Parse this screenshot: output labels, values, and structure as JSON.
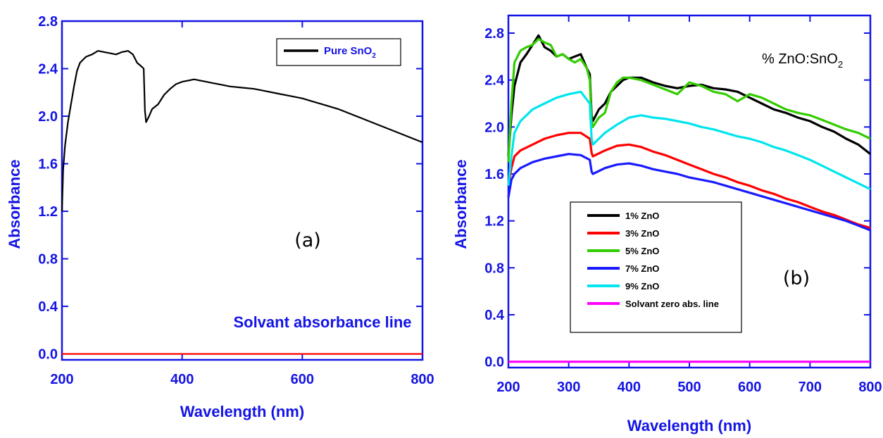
{
  "colors": {
    "axis": "#1414e6",
    "tick_text": "#1414e6",
    "title_text": "#1414e6",
    "annotation_text": "#1414e6"
  },
  "chart_data": [
    {
      "type": "line",
      "panel_label": "(a)",
      "title": "",
      "xlabel": "Wavelength (nm)",
      "ylabel": "Absorbance",
      "xlim": [
        200,
        800
      ],
      "ylim": [
        -0.05,
        2.8
      ],
      "xticks": [
        200,
        400,
        600,
        800
      ],
      "yticks": [
        0.0,
        0.4,
        0.8,
        1.2,
        1.6,
        2.0,
        2.4,
        2.8
      ],
      "xtick_labels": [
        "200",
        "400",
        "600",
        "800"
      ],
      "ytick_labels": [
        "0.0",
        "0.4",
        "0.8",
        "1.2",
        "1.6",
        "2.0",
        "2.4",
        "2.8"
      ],
      "grid": false,
      "legend_position": "top-right",
      "annotation": "Solvant absorbance line",
      "series": [
        {
          "name": "Pure SnO₂",
          "legend_main": "Pure SnO",
          "legend_sub": "2",
          "color": "#000000",
          "x": [
            200,
            202,
            205,
            210,
            215,
            220,
            225,
            230,
            240,
            250,
            260,
            270,
            280,
            290,
            300,
            310,
            318,
            325,
            332,
            336,
            338,
            340,
            345,
            350,
            360,
            370,
            380,
            390,
            400,
            410,
            420,
            430,
            440,
            450,
            460,
            480,
            500,
            520,
            540,
            560,
            580,
            600,
            620,
            640,
            660,
            680,
            700,
            720,
            740,
            760,
            780,
            800
          ],
          "y": [
            1.2,
            1.55,
            1.75,
            1.95,
            2.1,
            2.25,
            2.38,
            2.45,
            2.5,
            2.52,
            2.55,
            2.54,
            2.53,
            2.52,
            2.54,
            2.55,
            2.52,
            2.45,
            2.42,
            2.4,
            2.05,
            1.95,
            2.0,
            2.06,
            2.1,
            2.18,
            2.23,
            2.27,
            2.29,
            2.3,
            2.31,
            2.3,
            2.29,
            2.28,
            2.27,
            2.25,
            2.24,
            2.23,
            2.21,
            2.19,
            2.17,
            2.15,
            2.12,
            2.09,
            2.06,
            2.02,
            1.98,
            1.94,
            1.9,
            1.86,
            1.82,
            1.78
          ]
        },
        {
          "name": "Solvant absorbance line",
          "color": "#ff0000",
          "x": [
            200,
            800
          ],
          "y": [
            0.0,
            0.0
          ]
        }
      ]
    },
    {
      "type": "line",
      "panel_label": "(b)",
      "title": "",
      "xlabel": "Wavelength (nm)",
      "ylabel": "Absorbance",
      "xlim": [
        200,
        800
      ],
      "ylim": [
        -0.05,
        2.95
      ],
      "xticks": [
        200,
        300,
        400,
        500,
        600,
        700,
        800
      ],
      "yticks": [
        0.0,
        0.4,
        0.8,
        1.2,
        1.6,
        2.0,
        2.4,
        2.8
      ],
      "xtick_labels": [
        "200",
        "300",
        "400",
        "500",
        "600",
        "700",
        "800"
      ],
      "ytick_labels": [
        "0.0",
        "0.4",
        "0.8",
        "1.2",
        "1.6",
        "2.0",
        "2.4",
        "2.8"
      ],
      "grid": false,
      "legend_position": "center",
      "annotation_main": "% ZnO:SnO",
      "annotation_sub": "2",
      "series": [
        {
          "name": "1% ZnO",
          "color": "#000000",
          "x": [
            200,
            205,
            210,
            220,
            230,
            240,
            250,
            260,
            270,
            280,
            290,
            300,
            310,
            320,
            330,
            335,
            338,
            340,
            350,
            360,
            370,
            380,
            390,
            400,
            420,
            440,
            460,
            480,
            500,
            520,
            540,
            560,
            580,
            600,
            620,
            640,
            660,
            680,
            700,
            720,
            740,
            760,
            780,
            800
          ],
          "y": [
            1.75,
            2.1,
            2.35,
            2.55,
            2.62,
            2.7,
            2.78,
            2.68,
            2.65,
            2.6,
            2.62,
            2.58,
            2.6,
            2.62,
            2.5,
            2.45,
            2.1,
            2.05,
            2.15,
            2.2,
            2.3,
            2.35,
            2.4,
            2.42,
            2.42,
            2.38,
            2.35,
            2.33,
            2.35,
            2.36,
            2.33,
            2.32,
            2.3,
            2.25,
            2.2,
            2.15,
            2.12,
            2.08,
            2.05,
            2.0,
            1.96,
            1.9,
            1.85,
            1.77
          ]
        },
        {
          "name": "3% ZnO",
          "color": "#ff0000",
          "x": [
            200,
            205,
            210,
            220,
            240,
            260,
            280,
            300,
            320,
            335,
            338,
            340,
            360,
            380,
            400,
            420,
            440,
            460,
            480,
            500,
            520,
            540,
            560,
            580,
            600,
            620,
            640,
            660,
            680,
            700,
            720,
            740,
            760,
            780,
            800
          ],
          "y": [
            1.5,
            1.65,
            1.75,
            1.8,
            1.85,
            1.9,
            1.93,
            1.95,
            1.95,
            1.9,
            1.78,
            1.75,
            1.8,
            1.84,
            1.85,
            1.83,
            1.79,
            1.76,
            1.72,
            1.68,
            1.64,
            1.6,
            1.57,
            1.53,
            1.5,
            1.46,
            1.43,
            1.39,
            1.36,
            1.32,
            1.28,
            1.25,
            1.21,
            1.17,
            1.14
          ]
        },
        {
          "name": "5% ZnO",
          "color": "#33cc00",
          "x": [
            200,
            205,
            210,
            220,
            230,
            240,
            250,
            260,
            270,
            280,
            290,
            300,
            310,
            320,
            330,
            335,
            338,
            340,
            350,
            360,
            370,
            380,
            390,
            400,
            420,
            440,
            460,
            480,
            500,
            520,
            540,
            560,
            580,
            600,
            620,
            640,
            660,
            680,
            700,
            720,
            740,
            760,
            780,
            800
          ],
          "y": [
            1.7,
            2.2,
            2.55,
            2.65,
            2.68,
            2.7,
            2.75,
            2.72,
            2.7,
            2.6,
            2.62,
            2.58,
            2.55,
            2.58,
            2.5,
            2.4,
            2.05,
            2.0,
            2.08,
            2.12,
            2.3,
            2.38,
            2.42,
            2.42,
            2.4,
            2.36,
            2.32,
            2.28,
            2.38,
            2.35,
            2.3,
            2.28,
            2.22,
            2.28,
            2.25,
            2.2,
            2.15,
            2.12,
            2.1,
            2.06,
            2.02,
            1.98,
            1.95,
            1.9
          ]
        },
        {
          "name": "7% ZnO",
          "color": "#1a1aff",
          "x": [
            200,
            205,
            210,
            220,
            240,
            260,
            280,
            300,
            320,
            335,
            338,
            340,
            360,
            380,
            400,
            420,
            440,
            460,
            480,
            500,
            520,
            540,
            560,
            580,
            600,
            620,
            640,
            660,
            680,
            700,
            720,
            740,
            760,
            780,
            800
          ],
          "y": [
            1.4,
            1.55,
            1.6,
            1.65,
            1.7,
            1.73,
            1.75,
            1.77,
            1.76,
            1.72,
            1.62,
            1.6,
            1.65,
            1.68,
            1.69,
            1.67,
            1.64,
            1.62,
            1.6,
            1.57,
            1.55,
            1.53,
            1.5,
            1.47,
            1.44,
            1.41,
            1.38,
            1.35,
            1.32,
            1.29,
            1.26,
            1.23,
            1.2,
            1.16,
            1.12
          ]
        },
        {
          "name": "9% ZnO",
          "color": "#00e5ee",
          "x": [
            200,
            205,
            210,
            220,
            240,
            260,
            280,
            300,
            320,
            335,
            338,
            340,
            360,
            380,
            400,
            420,
            440,
            460,
            480,
            500,
            520,
            540,
            560,
            580,
            600,
            620,
            640,
            660,
            680,
            700,
            720,
            740,
            760,
            780,
            800
          ],
          "y": [
            1.5,
            1.75,
            1.95,
            2.05,
            2.15,
            2.2,
            2.25,
            2.28,
            2.3,
            2.2,
            1.9,
            1.85,
            1.95,
            2.02,
            2.08,
            2.1,
            2.08,
            2.07,
            2.05,
            2.03,
            2.0,
            1.98,
            1.95,
            1.92,
            1.9,
            1.87,
            1.83,
            1.8,
            1.76,
            1.72,
            1.67,
            1.62,
            1.57,
            1.52,
            1.47
          ]
        },
        {
          "name": "Solvant zero abs. line",
          "color": "#ff00ff",
          "x": [
            200,
            800
          ],
          "y": [
            0.0,
            0.0
          ]
        }
      ]
    }
  ]
}
